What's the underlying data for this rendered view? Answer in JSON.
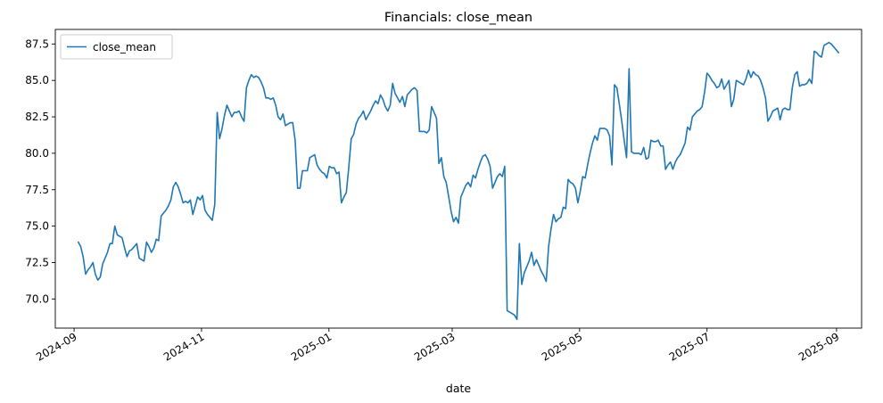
{
  "chart_data": {
    "type": "line",
    "title": "Financials: close_mean",
    "xlabel": "date",
    "ylabel": "",
    "x_start": "2024-09-03",
    "x_end": "2025-09-02",
    "xlim": [
      "2024-08-23",
      "2025-09-13"
    ],
    "ylim": [
      68.0,
      88.5
    ],
    "x_ticks": [
      {
        "date": "2024-09-01",
        "label": "2024-09"
      },
      {
        "date": "2024-11-01",
        "label": "2024-11"
      },
      {
        "date": "2025-01-01",
        "label": "2025-01"
      },
      {
        "date": "2025-03-01",
        "label": "2025-03"
      },
      {
        "date": "2025-05-01",
        "label": "2025-05"
      },
      {
        "date": "2025-07-01",
        "label": "2025-07"
      },
      {
        "date": "2025-09-01",
        "label": "2025-09"
      }
    ],
    "y_ticks": [
      {
        "value": 70.0,
        "label": "70.0"
      },
      {
        "value": 72.5,
        "label": "72.5"
      },
      {
        "value": 75.0,
        "label": "75.0"
      },
      {
        "value": 77.5,
        "label": "77.5"
      },
      {
        "value": 80.0,
        "label": "80.0"
      },
      {
        "value": 82.5,
        "label": "82.5"
      },
      {
        "value": 85.0,
        "label": "85.0"
      },
      {
        "value": 87.5,
        "label": "87.5"
      }
    ],
    "grid": false,
    "legend_position": "upper-left",
    "series": [
      {
        "name": "close_mean",
        "color": "#1f77b4",
        "values": [
          73.9,
          73.6,
          72.9,
          71.7,
          72.0,
          72.2,
          72.5,
          71.7,
          71.3,
          71.5,
          72.4,
          72.8,
          73.2,
          73.8,
          73.8,
          75.0,
          74.4,
          74.3,
          74.2,
          73.5,
          72.9,
          73.3,
          73.4,
          73.6,
          73.8,
          72.8,
          72.7,
          72.6,
          73.9,
          73.6,
          73.2,
          73.5,
          74.1,
          74.0,
          75.7,
          75.9,
          76.1,
          76.4,
          76.8,
          77.7,
          78.0,
          77.7,
          77.2,
          76.6,
          76.7,
          76.6,
          76.8,
          75.8,
          76.4,
          77.0,
          76.8,
          77.1,
          76.1,
          75.8,
          75.6,
          75.4,
          76.5,
          82.8,
          81.0,
          81.7,
          82.6,
          83.3,
          82.9,
          82.5,
          82.8,
          82.8,
          82.9,
          82.5,
          82.2,
          84.5,
          85.0,
          85.4,
          85.2,
          85.3,
          85.2,
          84.9,
          84.5,
          83.8,
          83.8,
          83.7,
          83.8,
          83.3,
          82.5,
          82.3,
          82.7,
          81.9,
          82.0,
          82.1,
          82.1,
          80.9,
          77.6,
          77.6,
          78.8,
          78.8,
          78.8,
          79.7,
          79.8,
          79.9,
          79.2,
          78.9,
          78.7,
          78.6,
          78.3,
          79.1,
          79.0,
          79.0,
          78.6,
          78.7,
          76.6,
          77.0,
          77.3,
          79.0,
          81.0,
          81.3,
          82.0,
          82.4,
          82.6,
          82.9,
          82.3,
          82.6,
          82.9,
          83.3,
          83.6,
          83.4,
          84.0,
          83.7,
          83.2,
          82.9,
          83.3,
          84.8,
          84.1,
          83.8,
          83.5,
          83.9,
          83.2,
          84.0,
          84.2,
          84.4,
          84.5,
          84.3,
          81.5,
          81.5,
          81.5,
          81.4,
          81.6,
          83.2,
          82.8,
          82.4,
          79.3,
          79.7,
          78.4,
          78.0,
          77.0,
          76.0,
          75.3,
          75.6,
          75.2,
          77.0,
          77.4,
          77.8,
          78.0,
          77.7,
          78.5,
          78.3,
          78.9,
          79.4,
          79.8,
          79.9,
          79.6,
          79.1,
          77.6,
          78.0,
          78.4,
          78.6,
          78.4,
          79.1,
          69.2,
          69.1,
          69.0,
          68.9,
          68.6,
          73.8,
          71.0,
          71.8,
          72.2,
          72.6,
          73.2,
          72.3,
          72.7,
          72.3,
          71.9,
          71.6,
          71.2,
          73.6,
          74.8,
          75.8,
          75.3,
          75.5,
          75.6,
          76.3,
          76.2,
          78.2,
          78.0,
          77.9,
          77.6,
          76.6,
          77.4,
          78.4,
          78.3,
          79.2,
          80.0,
          80.7,
          81.2,
          80.9,
          81.7,
          81.7,
          81.7,
          81.6,
          81.2,
          79.2,
          84.7,
          84.5,
          83.4,
          82.2,
          80.9,
          79.7,
          85.8,
          80.1,
          80.0,
          80.0,
          80.0,
          79.9,
          80.4,
          79.6,
          79.7,
          80.9,
          80.8,
          80.8,
          80.9,
          80.5,
          80.5,
          78.9,
          79.2,
          79.4,
          78.9,
          79.4,
          79.7,
          79.9,
          80.3,
          80.7,
          81.8,
          81.6,
          82.5,
          82.7,
          82.9,
          83.0,
          83.2,
          84.2,
          85.5,
          85.3,
          85.0,
          84.8,
          84.5,
          84.6,
          85.1,
          84.4,
          84.7,
          85.0,
          83.2,
          83.7,
          85.0,
          84.9,
          84.8,
          84.7,
          85.1,
          85.7,
          85.2,
          85.6,
          85.4,
          85.3,
          85.0,
          84.5,
          83.8,
          82.2,
          82.5,
          82.9,
          83.0,
          83.1,
          82.3,
          83.0,
          83.1,
          83.0,
          83.0,
          84.5,
          85.4,
          85.6,
          84.6,
          84.7,
          84.7,
          84.8,
          85.1,
          84.8,
          87.0,
          86.9,
          86.7,
          86.6,
          87.4,
          87.5,
          87.6,
          87.5,
          87.3,
          87.1,
          86.9
        ]
      }
    ]
  }
}
